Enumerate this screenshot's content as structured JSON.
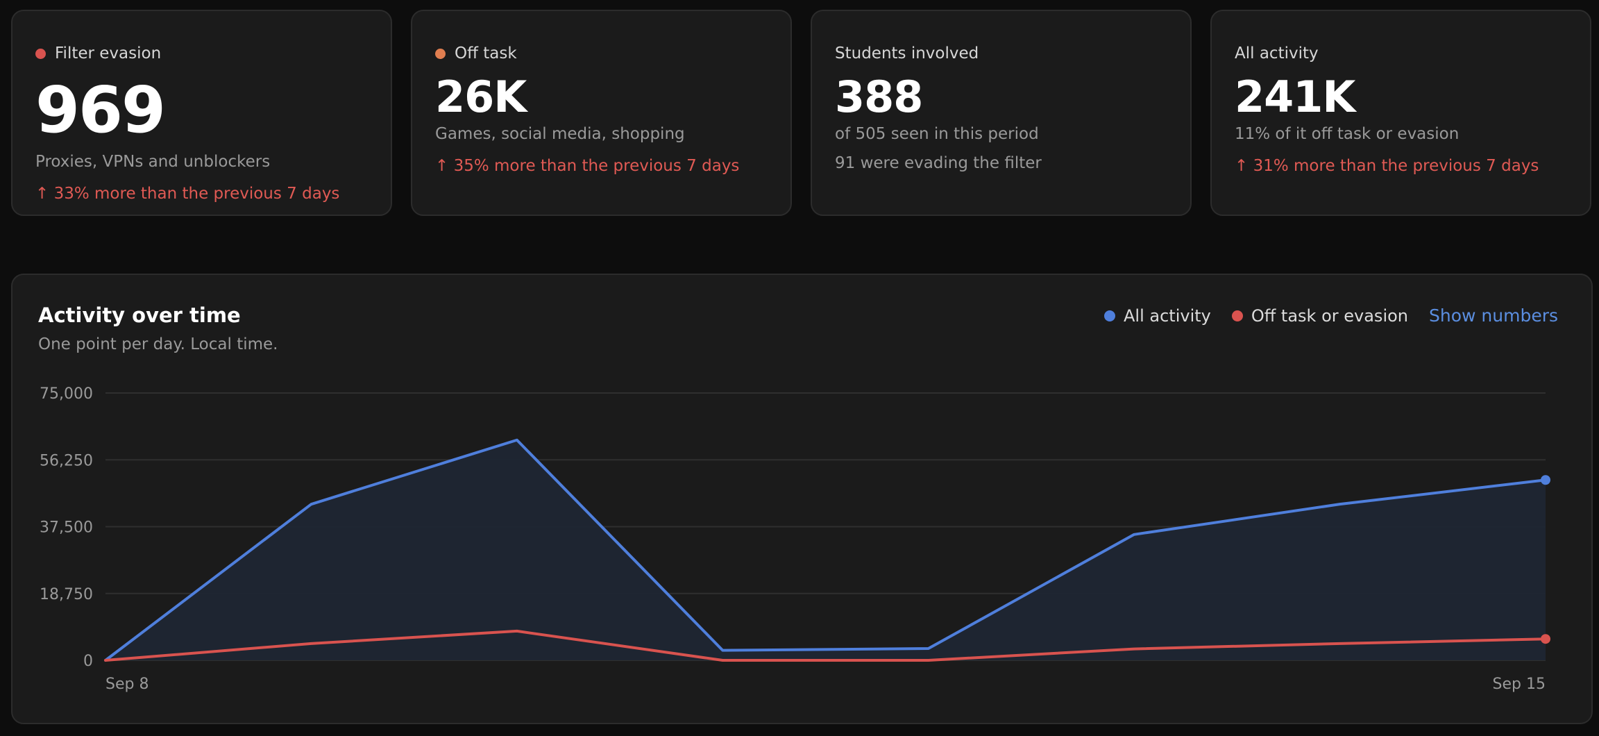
{
  "colors": {
    "filter_evasion": "#d9534f",
    "off_task": "#e07e50",
    "all_activity": "#4f7fdc",
    "off_task_or_evasion": "#d9534f",
    "trend_up": "#e05a54",
    "link": "#5b8ee0"
  },
  "cards": [
    {
      "label": "Filter evasion",
      "value": "969",
      "line1": "Proxies, VPNs and unblockers",
      "trend": "↑ 33% more than the previous 7 days"
    },
    {
      "label": "Off task",
      "value": "26K",
      "line1": "Games, social media, shopping",
      "trend": "↑ 35% more than the previous 7 days"
    },
    {
      "label": "Students involved",
      "value": "388",
      "line1": "of 505 seen in this period",
      "line2": "91 were evading the filter"
    },
    {
      "label": "All activity",
      "value": "241K",
      "line1": "11% of it off task or evasion",
      "trend": "↑ 31% more than the previous 7 days"
    }
  ],
  "panel": {
    "title": "Activity over time",
    "subtitle": "One point per day. Local time.",
    "legend": [
      "All activity",
      "Off task or evasion"
    ],
    "show_numbers": "Show numbers"
  },
  "chart_data": {
    "type": "area",
    "title": "Activity over time",
    "x": [
      "Sep 8",
      "Sep 9",
      "Sep 10",
      "Sep 11",
      "Sep 12",
      "Sep 13",
      "Sep 14",
      "Sep 15"
    ],
    "x_tick_labels": [
      "Sep 8",
      "Sep 15"
    ],
    "y_ticks": [
      0,
      18750,
      37500,
      56250,
      75000
    ],
    "y_tick_labels": [
      "0",
      "18,750",
      "37,500",
      "56,250",
      "75,000"
    ],
    "ylim": [
      0,
      75000
    ],
    "grid": true,
    "legend_position": "top-right",
    "series": [
      {
        "name": "All activity",
        "values": [
          0,
          43800,
          61800,
          2800,
          3300,
          35300,
          43800,
          50600
        ]
      },
      {
        "name": "Off task or evasion",
        "values": [
          0,
          4700,
          8200,
          0,
          0,
          3200,
          4700,
          6000
        ]
      }
    ]
  }
}
